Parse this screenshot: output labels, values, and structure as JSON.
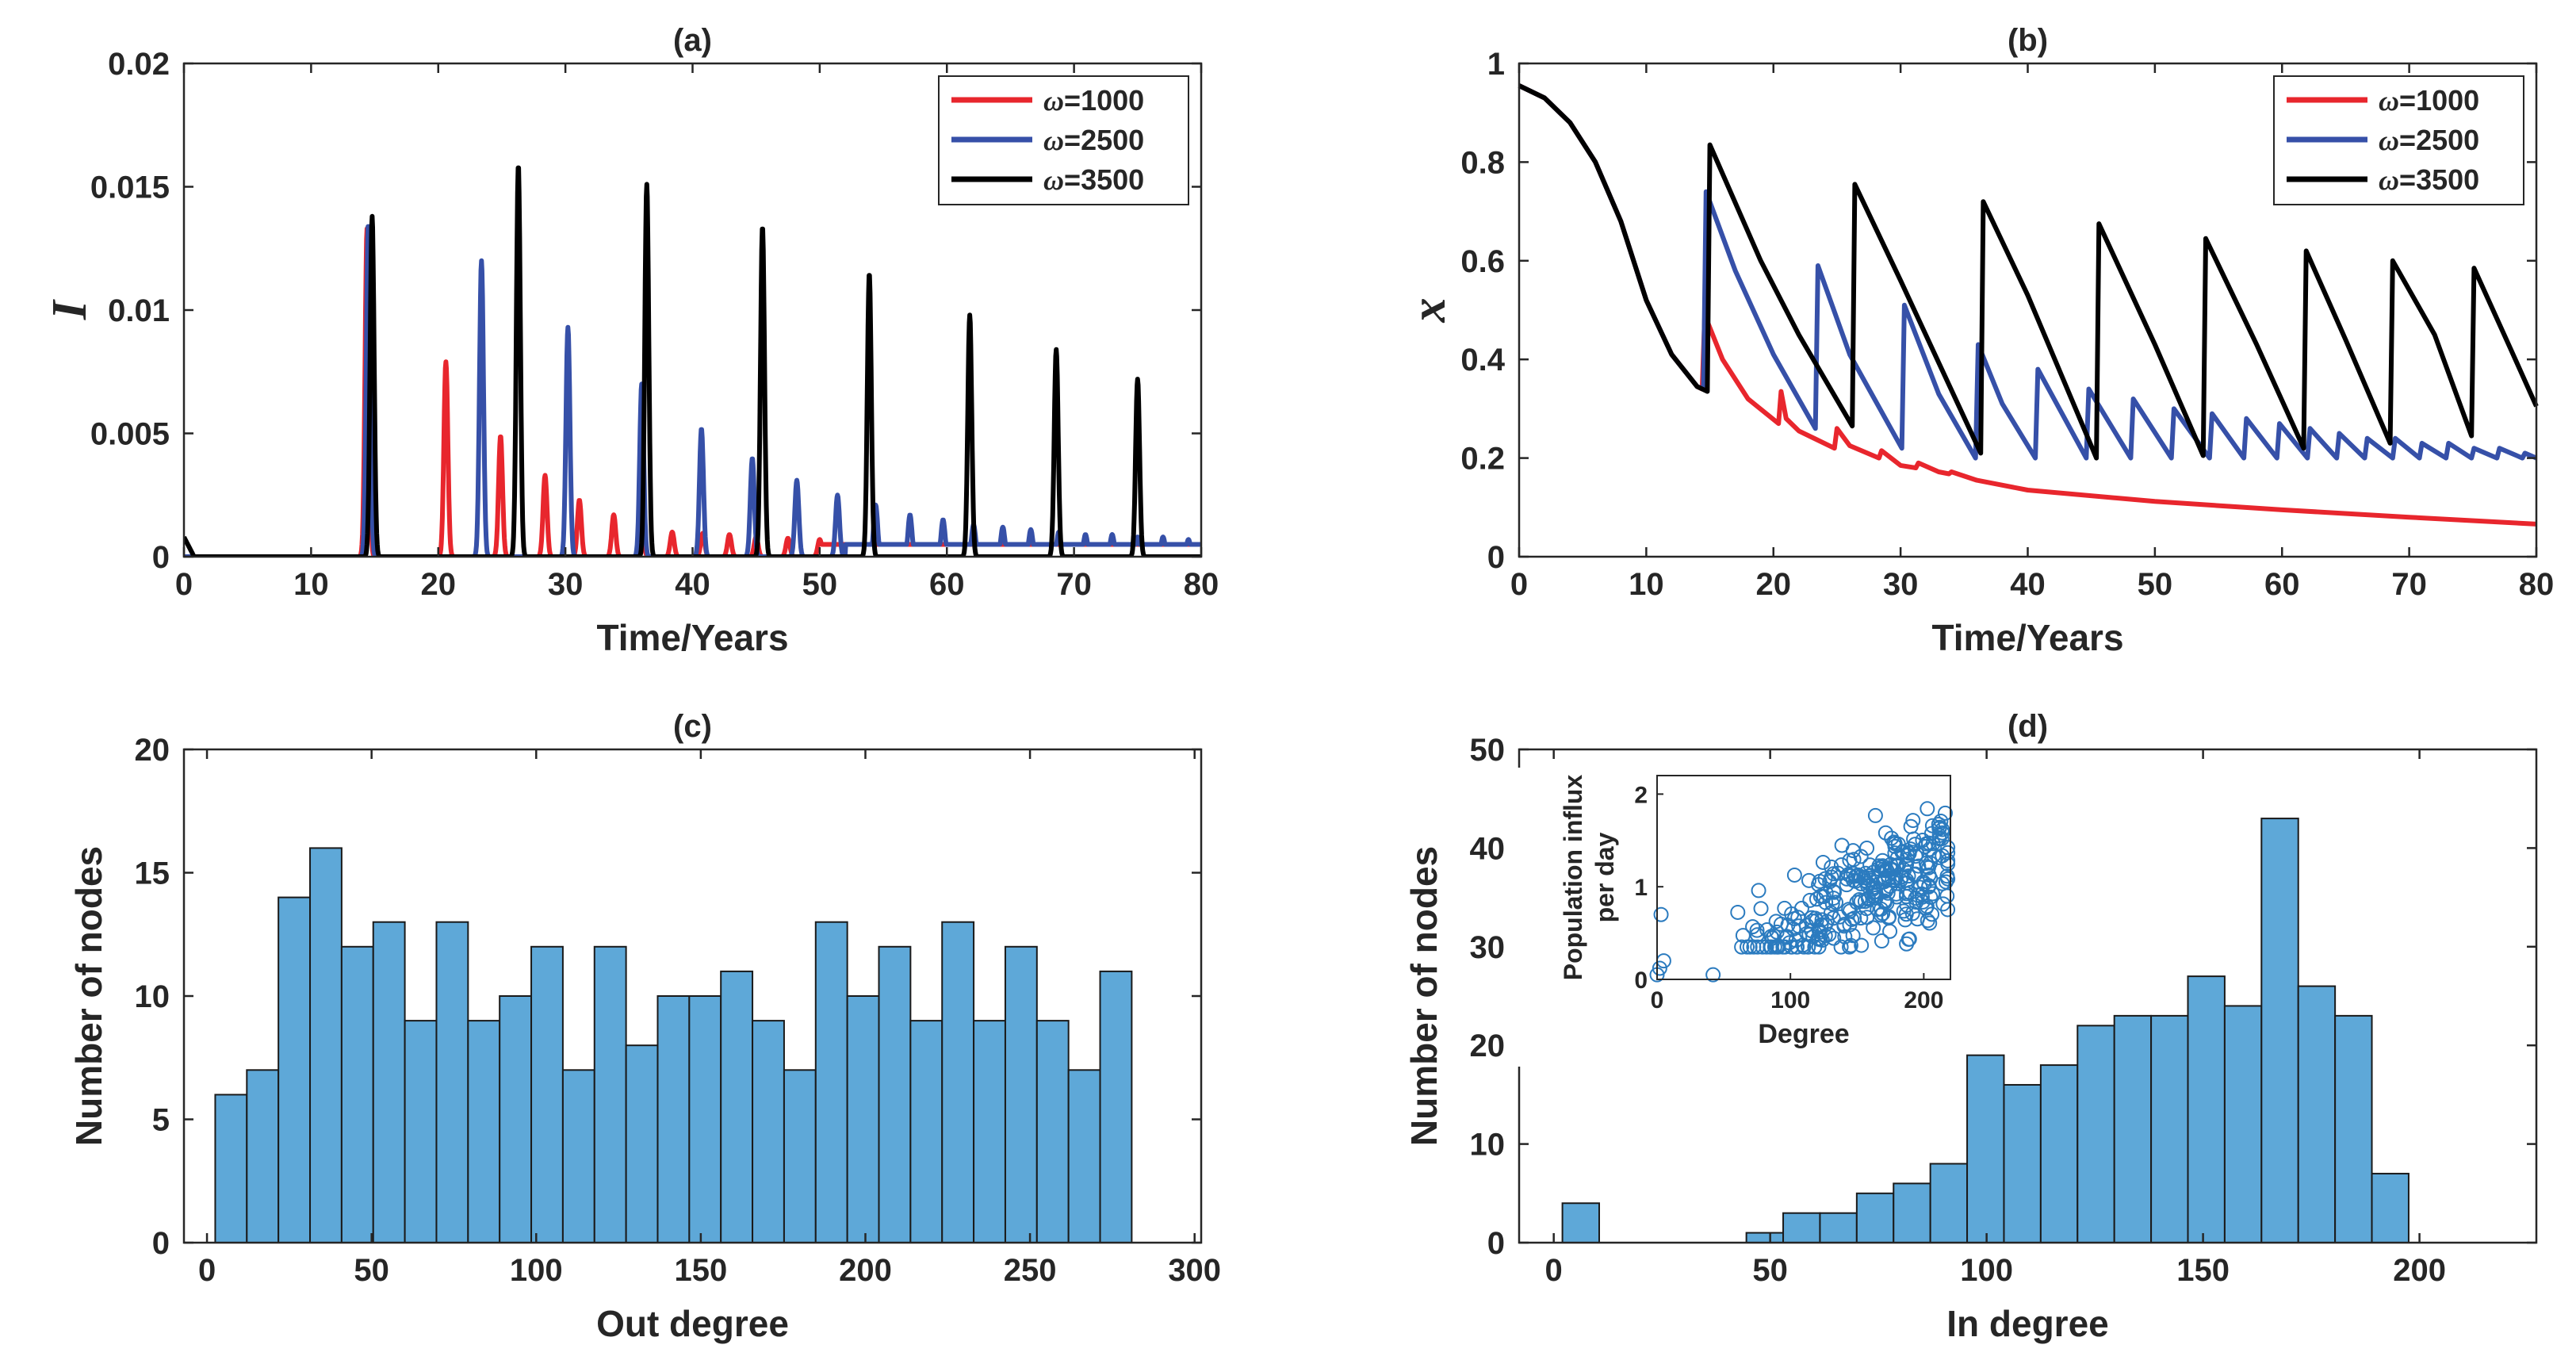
{
  "colors": {
    "w1000": "#e8262d",
    "w2500": "#3650a8",
    "w3500": "#000000",
    "bar_fill": "#5ea8d8",
    "bar_edge": "#1a1a1a",
    "scatter": "#2b7bbf"
  },
  "chart_data": [
    {
      "id": "a",
      "type": "line",
      "title": "(a)",
      "xlabel": "Time/Years",
      "ylabel": "I",
      "xlim": [
        0,
        80
      ],
      "ylim": [
        0,
        0.02
      ],
      "xticks": [
        "0",
        "10",
        "20",
        "30",
        "40",
        "50",
        "60",
        "70",
        "80"
      ],
      "yticks": [
        "0",
        "0.005",
        "0.01",
        "0.015",
        "0.02"
      ],
      "legend": {
        "position": "top-right",
        "entries": [
          {
            "prefix": "ω",
            "label": "=1000"
          },
          {
            "prefix": "ω",
            "label": "=2500"
          },
          {
            "prefix": "ω",
            "label": "=3500"
          }
        ]
      },
      "series": [
        {
          "name": "ω=1000",
          "spikes": [
            [
              14.4,
              0.0133
            ],
            [
              20.6,
              0.0079
            ],
            [
              24.9,
              0.0049
            ],
            [
              28.4,
              0.0033
            ],
            [
              31.1,
              0.0023
            ],
            [
              33.8,
              0.0017
            ],
            [
              36.0,
              0.0012
            ],
            [
              38.4,
              0.001
            ],
            [
              40.8,
              0.00095
            ],
            [
              42.9,
              0.0009
            ],
            [
              45.0,
              0.0008
            ],
            [
              47.5,
              0.00075
            ],
            [
              50.0,
              0.0007
            ]
          ],
          "baseline": 0.0005,
          "baseline_from": 50
        },
        {
          "name": "ω=2500",
          "spikes": [
            [
              14.5,
              0.0135
            ],
            [
              23.4,
              0.012
            ],
            [
              30.2,
              0.0093
            ],
            [
              36.0,
              0.007
            ],
            [
              40.7,
              0.0052
            ],
            [
              44.7,
              0.004
            ],
            [
              48.2,
              0.0031
            ],
            [
              51.4,
              0.0025
            ],
            [
              54.4,
              0.0021
            ],
            [
              57.1,
              0.0017
            ],
            [
              59.7,
              0.0015
            ],
            [
              62.1,
              0.0013
            ],
            [
              64.4,
              0.0012
            ],
            [
              66.6,
              0.0011
            ],
            [
              68.8,
              0.001
            ],
            [
              70.9,
              0.0009
            ],
            [
              73.0,
              0.0009
            ],
            [
              75.0,
              0.0008
            ],
            [
              77.0,
              0.0008
            ],
            [
              79.0,
              0.0007
            ]
          ],
          "baseline": 0.0005,
          "baseline_from": 52
        },
        {
          "name": "ω=3500",
          "spikes": [
            [
              14.8,
              0.0138
            ],
            [
              26.3,
              0.0159
            ],
            [
              36.4,
              0.0151
            ],
            [
              45.5,
              0.0134
            ],
            [
              53.9,
              0.0115
            ],
            [
              61.8,
              0.0098
            ],
            [
              68.6,
              0.0084
            ],
            [
              75.0,
              0.0072
            ]
          ],
          "start_value": 0.0008
        }
      ]
    },
    {
      "id": "b",
      "type": "line",
      "title": "(b)",
      "xlabel": "Time/Years",
      "ylabel": "x",
      "xlim": [
        0,
        80
      ],
      "ylim": [
        0,
        1
      ],
      "xticks": [
        "0",
        "10",
        "20",
        "30",
        "40",
        "50",
        "60",
        "70",
        "80"
      ],
      "yticks": [
        "0",
        "0.2",
        "0.4",
        "0.6",
        "0.8",
        "1"
      ],
      "legend": {
        "position": "top-right",
        "entries": [
          {
            "prefix": "ω",
            "label": "=1000"
          },
          {
            "prefix": "ω",
            "label": "=2500"
          },
          {
            "prefix": "ω",
            "label": "=3500"
          }
        ]
      },
      "series": [
        {
          "name": "ω=1000",
          "x": [
            0,
            2,
            4,
            6,
            8,
            10,
            12,
            14,
            14.4,
            14.6,
            16,
            18,
            20.4,
            20.6,
            21,
            22,
            24.8,
            25,
            26,
            28.3,
            28.5,
            30,
            31.2,
            31.4,
            33,
            33.8,
            34,
            36,
            40,
            50,
            60,
            70,
            80
          ],
          "y": [
            0.955,
            0.93,
            0.88,
            0.8,
            0.68,
            0.52,
            0.41,
            0.345,
            0.34,
            0.49,
            0.4,
            0.32,
            0.27,
            0.335,
            0.28,
            0.255,
            0.22,
            0.26,
            0.225,
            0.2,
            0.215,
            0.185,
            0.18,
            0.19,
            0.172,
            0.168,
            0.172,
            0.155,
            0.135,
            0.112,
            0.095,
            0.08,
            0.066
          ]
        },
        {
          "name": "ω=2500",
          "x": [
            0,
            2,
            4,
            6,
            8,
            10,
            12,
            14,
            14.5,
            14.7,
            17,
            20,
            23.3,
            23.5,
            26,
            30.1,
            30.3,
            33,
            35.9,
            36.1,
            38,
            40.6,
            40.8,
            44.6,
            44.8,
            48.1,
            48.3,
            51.3,
            51.5,
            54.3,
            54.5,
            57,
            57.2,
            59.6,
            59.8,
            62,
            62.2,
            64.3,
            64.5,
            66.5,
            66.7,
            68.7,
            68.9,
            70.8,
            71,
            72.9,
            73.1,
            74.9,
            75.1,
            76.9,
            77.1,
            78.9,
            79.1,
            80
          ],
          "y": [
            0.955,
            0.93,
            0.88,
            0.8,
            0.68,
            0.52,
            0.41,
            0.345,
            0.34,
            0.74,
            0.58,
            0.41,
            0.26,
            0.59,
            0.41,
            0.22,
            0.51,
            0.33,
            0.2,
            0.43,
            0.31,
            0.2,
            0.38,
            0.2,
            0.34,
            0.2,
            0.32,
            0.2,
            0.3,
            0.2,
            0.29,
            0.2,
            0.28,
            0.2,
            0.27,
            0.2,
            0.26,
            0.2,
            0.25,
            0.2,
            0.24,
            0.2,
            0.24,
            0.2,
            0.23,
            0.2,
            0.23,
            0.2,
            0.22,
            0.2,
            0.22,
            0.2,
            0.21,
            0.2
          ]
        },
        {
          "name": "ω=3500",
          "x": [
            0,
            2,
            4,
            6,
            8,
            10,
            12,
            14,
            14.8,
            15,
            19,
            22,
            26.2,
            26.4,
            30,
            36.3,
            36.5,
            40,
            45.4,
            45.6,
            50,
            53.8,
            54,
            58,
            61.7,
            61.9,
            65,
            68.5,
            68.7,
            72,
            74.9,
            75.1,
            78,
            80
          ],
          "y": [
            0.955,
            0.93,
            0.88,
            0.8,
            0.68,
            0.52,
            0.41,
            0.345,
            0.335,
            0.835,
            0.6,
            0.45,
            0.265,
            0.755,
            0.56,
            0.21,
            0.72,
            0.53,
            0.2,
            0.675,
            0.43,
            0.205,
            0.645,
            0.43,
            0.22,
            0.62,
            0.44,
            0.23,
            0.6,
            0.45,
            0.245,
            0.585,
            0.42,
            0.305
          ]
        }
      ]
    },
    {
      "id": "c",
      "type": "bar",
      "title": "(c)",
      "xlabel": "Out degree",
      "ylabel": "Number of nodes",
      "xlim": [
        -7,
        302
      ],
      "ylim": [
        0,
        20
      ],
      "xticks": [
        "0",
        "50",
        "100",
        "150",
        "200",
        "250",
        "300"
      ],
      "yticks": [
        "0",
        "5",
        "10",
        "15",
        "20"
      ],
      "bin_start": 2.5,
      "bin_width": 9.6,
      "values": [
        6,
        7,
        14,
        16,
        12,
        13,
        9,
        13,
        9,
        10,
        12,
        7,
        12,
        8,
        10,
        10,
        11,
        9,
        7,
        13,
        10,
        12,
        9,
        13,
        9,
        12,
        9,
        7,
        11
      ]
    },
    {
      "id": "d",
      "type": "bar",
      "title": "(d)",
      "xlabel": "In degree",
      "ylabel": "Number of nodes",
      "xlim": [
        -8,
        227
      ],
      "ylim": [
        0,
        50
      ],
      "xticks": [
        "0",
        "50",
        "100",
        "150",
        "200"
      ],
      "yticks": [
        "0",
        "10",
        "20",
        "30",
        "40",
        "50"
      ],
      "bin_start": 2,
      "bin_width": 8.5,
      "values": [
        4,
        0,
        0,
        0,
        0,
        1,
        3,
        3,
        5,
        6,
        8,
        19,
        16,
        18,
        22,
        23,
        23,
        27,
        24,
        43,
        26,
        23,
        7
      ],
      "inset": {
        "type": "scatter",
        "xlabel": "Degree",
        "ylabel_lines": [
          "Population influx",
          "per day"
        ],
        "xlim": [
          0,
          220
        ],
        "ylim": [
          0,
          2.2
        ],
        "xticks": [
          "0",
          "100",
          "200"
        ],
        "yticks": [
          "0",
          "1",
          "2"
        ]
      }
    }
  ]
}
